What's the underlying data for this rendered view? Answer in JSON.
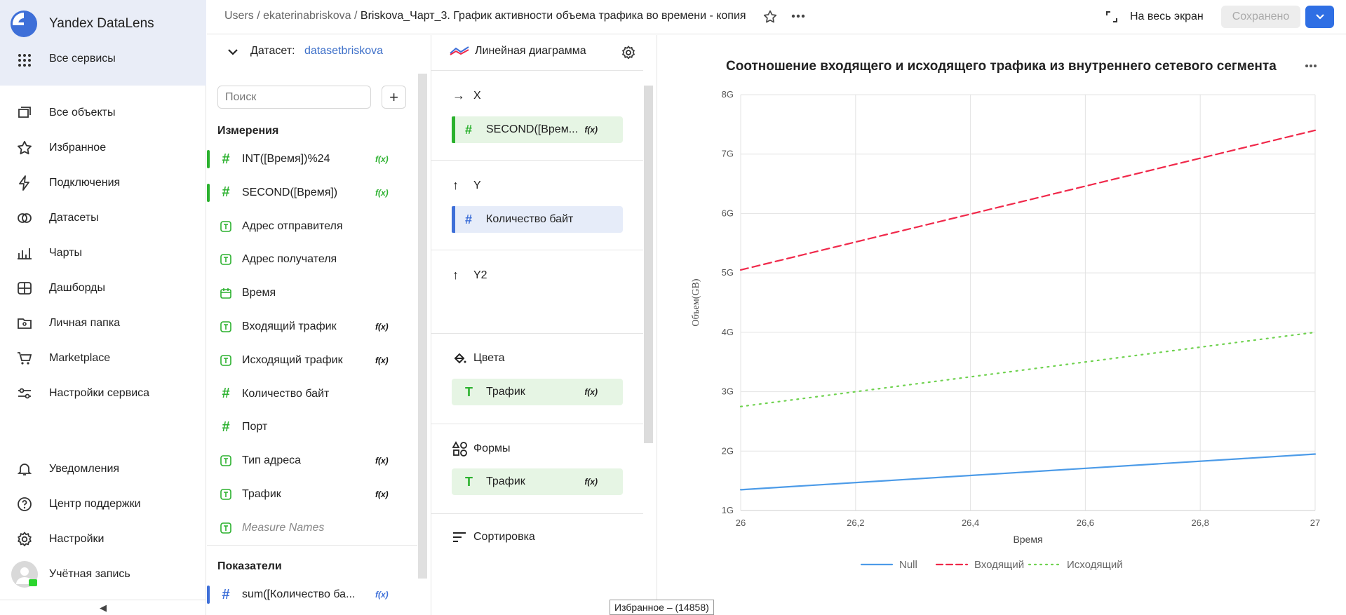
{
  "app": {
    "brand": "Yandex DataLens",
    "all_services": "Все сервисы"
  },
  "nav": {
    "items": [
      {
        "label": "Все объекты",
        "icon": "stack-icon"
      },
      {
        "label": "Избранное",
        "icon": "star-icon"
      },
      {
        "label": "Подключения",
        "icon": "lightning-icon"
      },
      {
        "label": "Датасеты",
        "icon": "circles-icon"
      },
      {
        "label": "Чарты",
        "icon": "chart-icon"
      },
      {
        "label": "Дашборды",
        "icon": "dashboard-icon"
      },
      {
        "label": "Личная папка",
        "icon": "folder-icon"
      },
      {
        "label": "Marketplace",
        "icon": "cart-icon"
      },
      {
        "label": "Настройки сервиса",
        "icon": "sliders-icon"
      }
    ],
    "bottom": [
      {
        "label": "Уведомления",
        "icon": "bell-icon"
      },
      {
        "label": "Центр поддержки",
        "icon": "help-icon"
      },
      {
        "label": "Настройки",
        "icon": "gear-icon"
      },
      {
        "label": "Учётная запись",
        "icon": "avatar-icon"
      }
    ],
    "collapse": "◀"
  },
  "header": {
    "crumbs": [
      "Users",
      "ekaterinabriskova"
    ],
    "sep": "/",
    "title": "Briskova_Чарт_3. График активности объема трафика во времени - копия",
    "fullscreen": "На весь экран",
    "saved": "Сохранено"
  },
  "dataset": {
    "label": "Датасет:",
    "name": "datasetbriskova",
    "search_placeholder": "Поиск",
    "dimensions_title": "Измерения",
    "dimensions": [
      {
        "type": "#",
        "label": "INT([Время])%24",
        "fx": "f(x)",
        "bar": "#2bb12e"
      },
      {
        "type": "#",
        "label": "SECOND([Время])",
        "fx": "f(x)",
        "bar": "#2bb12e"
      },
      {
        "type": "T",
        "label": "Адрес отправителя",
        "fx": "",
        "bar": ""
      },
      {
        "type": "T",
        "label": "Адрес получателя",
        "fx": "",
        "bar": ""
      },
      {
        "type": "D",
        "label": "Время",
        "fx": "",
        "bar": ""
      },
      {
        "type": "T",
        "label": "Входящий трафик",
        "fx": "f(x)",
        "bar": ""
      },
      {
        "type": "T",
        "label": "Исходящий трафик",
        "fx": "f(x)",
        "bar": ""
      },
      {
        "type": "#",
        "label": "Количество байт",
        "fx": "",
        "bar": ""
      },
      {
        "type": "#",
        "label": "Порт",
        "fx": "",
        "bar": ""
      },
      {
        "type": "T",
        "label": "Тип адреса",
        "fx": "f(x)",
        "bar": ""
      },
      {
        "type": "T",
        "label": "Трафик",
        "fx": "f(x)",
        "bar": ""
      },
      {
        "type": "T",
        "label": "Measure Names",
        "fx": "",
        "bar": ""
      }
    ],
    "measures_title": "Показатели",
    "measures": [
      {
        "type": "#",
        "label": "sum([Количество ба...",
        "fx": "f(x)",
        "bar": "#3e6fd8"
      }
    ]
  },
  "config": {
    "chart_type": "Линейная диаграмма",
    "x": "X",
    "x_field": "SECOND([Врем...",
    "y": "Y",
    "y_field": "Количество байт",
    "y2": "Y2",
    "colors": "Цвета",
    "colors_field": "Трафик",
    "shapes": "Формы",
    "shapes_field": "Трафик",
    "sort": "Сортировка",
    "fx": "f(x)"
  },
  "tooltip": "Избранное – (14858)",
  "chart_data": {
    "type": "line",
    "title": "Соотношение входящего и исходящего трафика из внутреннего сетевого сегмента",
    "xlabel": "Время",
    "ylabel": "Объем(GB)",
    "xlim": [
      26,
      27
    ],
    "ylim": [
      1,
      8
    ],
    "x_ticks": [
      "26",
      "26,2",
      "26,4",
      "26,6",
      "26,8",
      "27"
    ],
    "y_ticks": [
      "1G",
      "2G",
      "3G",
      "4G",
      "5G",
      "6G",
      "7G",
      "8G"
    ],
    "grid": true,
    "legend": "bottom",
    "series": [
      {
        "name": "Null",
        "x": [
          26,
          27
        ],
        "values": [
          1.35,
          1.95
        ],
        "color": "#4c9be8",
        "dash": "solid"
      },
      {
        "name": "Входящий",
        "x": [
          26,
          27
        ],
        "values": [
          5.05,
          7.4
        ],
        "color": "#f0284a",
        "dash": "dashed"
      },
      {
        "name": "Исходящий",
        "x": [
          26,
          27
        ],
        "values": [
          2.75,
          4.0
        ],
        "color": "#6fd24f",
        "dash": "dotted"
      }
    ]
  }
}
